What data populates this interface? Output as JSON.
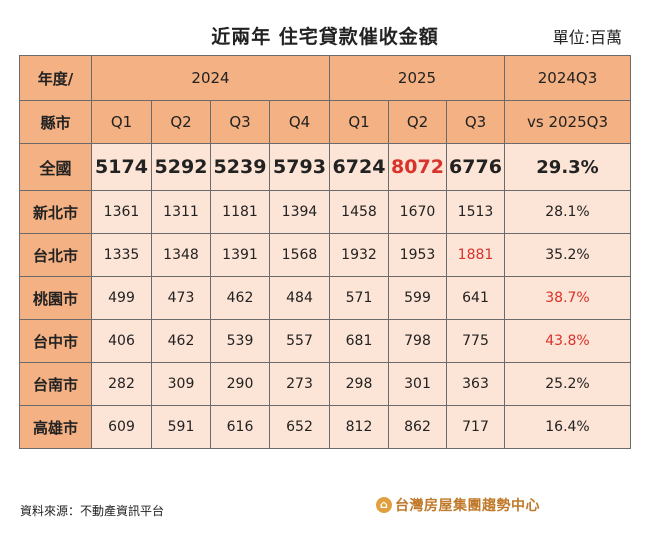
{
  "title": "近兩年  住宅貸款催收金額",
  "unit": "單位:百萬",
  "header": {
    "corner_top": "年度/",
    "corner_bottom": "縣市",
    "year_2024": "2024",
    "year_2025": "2025",
    "change_top": "2024Q3",
    "change_bottom": "vs 2025Q3",
    "quarters": [
      "Q1",
      "Q2",
      "Q3",
      "Q4",
      "Q1",
      "Q2",
      "Q3"
    ]
  },
  "rows": [
    {
      "region": "全國",
      "values": [
        "5174",
        "5292",
        "5239",
        "5793",
        "6724",
        "8072",
        "6776"
      ],
      "change": "29.3%"
    },
    {
      "region": "新北市",
      "values": [
        "1361",
        "1311",
        "1181",
        "1394",
        "1458",
        "1670",
        "1513"
      ],
      "change": "28.1%"
    },
    {
      "region": "台北市",
      "values": [
        "1335",
        "1348",
        "1391",
        "1568",
        "1932",
        "1953",
        "1881"
      ],
      "change": "35.2%"
    },
    {
      "region": "桃園市",
      "values": [
        "499",
        "473",
        "462",
        "484",
        "571",
        "599",
        "641"
      ],
      "change": "38.7%"
    },
    {
      "region": "台中市",
      "values": [
        "406",
        "462",
        "539",
        "557",
        "681",
        "798",
        "775"
      ],
      "change": "43.8%"
    },
    {
      "region": "台南市",
      "values": [
        "282",
        "309",
        "290",
        "273",
        "298",
        "301",
        "363"
      ],
      "change": "25.2%"
    },
    {
      "region": "高雄市",
      "values": [
        "609",
        "591",
        "616",
        "652",
        "812",
        "862",
        "717"
      ],
      "change": "16.4%"
    }
  ],
  "highlight_color": "#d9322a",
  "footer": {
    "source": "資料來源：不動產資訊平台",
    "logo_text": "台灣房屋集團趨勢中心"
  }
}
